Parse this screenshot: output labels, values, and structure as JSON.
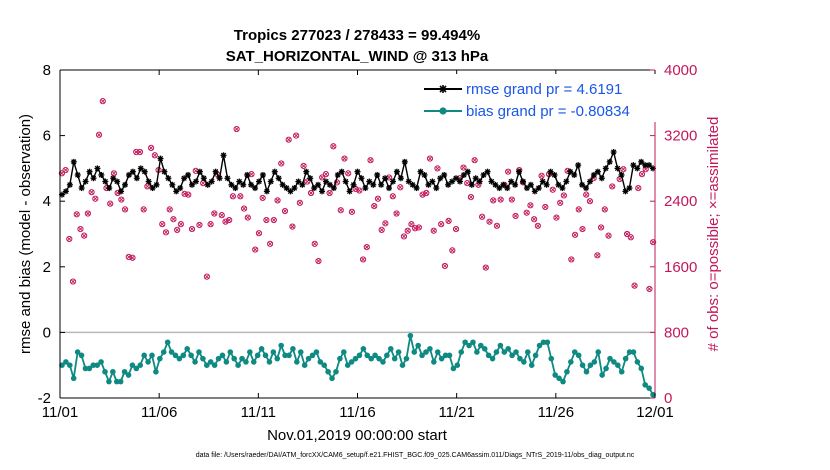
{
  "chart_data": {
    "type": "line",
    "title": "Tropics 277023 / 278433 = 99.494%",
    "subtitle": "SAT_HORIZONTAL_WIND @ 313 hPa",
    "xlabel": "Nov.01,2019 00:00:00 start",
    "ylabel": "rmse and bias (model - observation)",
    "y2label": "# of obs: o=possible; ×=assimilated",
    "xlim": [
      0,
      30
    ],
    "ylim": [
      -2,
      8
    ],
    "y2lim": [
      0,
      4000
    ],
    "x_ticks": [
      0,
      5,
      10,
      15,
      20,
      25,
      30
    ],
    "x_tick_labels": [
      "11/01",
      "11/06",
      "11/11",
      "11/16",
      "11/21",
      "11/26",
      "12/01"
    ],
    "y_ticks": [
      -2,
      0,
      2,
      4,
      6,
      8
    ],
    "y2_ticks": [
      0,
      800,
      1600,
      2400,
      3200,
      4000
    ],
    "footnote": "data file: /Users/raeder/DAI/ATM_forcXX/CAM6_setup/f.e21.FHIST_BGC.f09_025.CAM6assim.011/Diags_NTrS_2019-11/obs_diag_output.nc",
    "series": [
      {
        "name": "rmse grand pr = 4.6191",
        "color": "#000000",
        "marker": "asterisk",
        "values": [
          4.2,
          4.3,
          4.5,
          5.2,
          4.8,
          4.4,
          4.6,
          4.9,
          4.7,
          5.0,
          4.8,
          4.6,
          4.4,
          4.7,
          4.6,
          4.3,
          4.5,
          4.8,
          4.9,
          4.7,
          5.0,
          4.9,
          4.6,
          4.4,
          4.5,
          5.3,
          4.9,
          4.7,
          4.5,
          4.3,
          4.4,
          4.7,
          4.8,
          4.5,
          4.6,
          4.9,
          4.7,
          4.5,
          4.6,
          4.9,
          4.7,
          5.4,
          4.7,
          4.5,
          4.4,
          4.6,
          4.5,
          4.8,
          4.5,
          4.4,
          4.6,
          4.8,
          4.3,
          4.6,
          4.9,
          4.7,
          4.5,
          4.4,
          4.3,
          4.4,
          4.6,
          4.5,
          4.9,
          4.7,
          4.4,
          4.5,
          4.3,
          4.6,
          4.5,
          4.4,
          4.8,
          4.9,
          4.6,
          4.3,
          4.5,
          4.9,
          4.7,
          4.4,
          4.6,
          4.5,
          4.8,
          4.5,
          4.7,
          4.4,
          4.6,
          4.9,
          4.7,
          5.2,
          4.6,
          4.5,
          4.4,
          4.9,
          4.8,
          4.5,
          4.6,
          4.4,
          4.7,
          4.8,
          4.5,
          4.6,
          4.7,
          4.6,
          4.8,
          4.9,
          4.5,
          4.7,
          4.6,
          4.8,
          4.9,
          4.6,
          4.5,
          4.4,
          4.5,
          4.4,
          4.6,
          4.5,
          4.9,
          4.6,
          4.4,
          4.5,
          4.3,
          4.4,
          4.6,
          4.5,
          4.9,
          4.8,
          4.5,
          4.4,
          4.6,
          4.9,
          4.8,
          5.1,
          4.5,
          4.4,
          4.6,
          4.8,
          4.9,
          4.7,
          5.0,
          5.2,
          5.5,
          5.0,
          4.8,
          4.3,
          4.4,
          5.1,
          5.0,
          5.2,
          5.1,
          5.1,
          5.0
        ]
      },
      {
        "name": "bias grand pr = -0.80834",
        "color": "#0f8a82",
        "marker": "circle",
        "values": [
          -1.0,
          -0.9,
          -1.0,
          -1.4,
          -0.6,
          -0.7,
          -1.1,
          -1.1,
          -1.0,
          -1.0,
          -0.9,
          -1.2,
          -1.5,
          -1.2,
          -1.5,
          -1.5,
          -1.2,
          -1.3,
          -1.0,
          -1.1,
          -1.0,
          -0.7,
          -0.9,
          -0.7,
          -1.2,
          -0.8,
          -0.6,
          -0.3,
          -0.6,
          -0.7,
          -0.8,
          -0.7,
          -0.5,
          -0.7,
          -0.9,
          -0.6,
          -0.8,
          -1.0,
          -0.9,
          -1.0,
          -0.8,
          -0.7,
          -0.9,
          -0.6,
          -0.8,
          -1.0,
          -0.8,
          -0.9,
          -0.6,
          -0.9,
          -0.7,
          -0.5,
          -0.7,
          -0.9,
          -0.6,
          -0.8,
          -0.4,
          -0.7,
          -0.7,
          -0.5,
          -0.9,
          -0.6,
          -1.0,
          -0.8,
          -0.7,
          -0.6,
          -0.9,
          -1.0,
          -1.2,
          -1.4,
          -1.2,
          -0.8,
          -0.6,
          -1.0,
          -0.9,
          -0.8,
          -0.7,
          -0.5,
          -0.7,
          -0.8,
          -0.7,
          -0.8,
          -0.9,
          -0.7,
          -0.5,
          -0.8,
          -0.6,
          -1.0,
          -0.8,
          -0.1,
          -0.6,
          -0.4,
          -0.7,
          -0.6,
          -0.5,
          -0.9,
          -0.6,
          -0.8,
          -0.7,
          -0.7,
          -1.1,
          -1.0,
          -0.6,
          -0.3,
          -0.4,
          -0.3,
          -0.6,
          -0.4,
          -0.5,
          -0.7,
          -0.8,
          -0.6,
          -0.4,
          -0.6,
          -0.5,
          -0.7,
          -0.6,
          -0.8,
          -0.9,
          -0.6,
          -1.0,
          -0.7,
          -0.4,
          -0.3,
          -0.3,
          -0.8,
          -1.3,
          -1.4,
          -1.5,
          -1.2,
          -0.9,
          -0.6,
          -0.7,
          -1.0,
          -1.2,
          -1.0,
          -0.9,
          -0.6,
          -1.3,
          -1.1,
          -0.8,
          -0.9,
          -1.0,
          -1.2,
          -0.8,
          -0.6,
          -0.6,
          -0.9,
          -1.1,
          -1.6,
          -1.7,
          -1.9
        ]
      }
    ],
    "obs_series": {
      "name": "# of obs",
      "color": "#c2185b",
      "axis": "right",
      "values": [
        2740,
        2780,
        1940,
        1420,
        2240,
        2060,
        1980,
        2250,
        2510,
        2430,
        3210,
        3620,
        2560,
        2370,
        2740,
        2500,
        2420,
        2300,
        1720,
        1710,
        3000,
        3000,
        2300,
        2580,
        3050,
        2960,
        2780,
        2120,
        2020,
        2300,
        2180,
        2050,
        2120,
        2490,
        2480,
        2060,
        2770,
        2110,
        2620,
        1480,
        2120,
        2250,
        2720,
        2230,
        2150,
        2170,
        2460,
        3280,
        2460,
        2310,
        2200,
        2730,
        1810,
        2010,
        2440,
        2170,
        1880,
        2170,
        2410,
        2860,
        2280,
        3150,
        2090,
        3200,
        2380,
        2830,
        2640,
        2500,
        1880,
        1670,
        2690,
        2730,
        2500,
        3070,
        2630,
        2290,
        2920,
        2740,
        2270,
        2550,
        2530,
        1690,
        1840,
        2900,
        2340,
        2430,
        2050,
        2130,
        2690,
        2460,
        2250,
        2570,
        1970,
        2040,
        2120,
        2070,
        2080,
        2480,
        2500,
        2920,
        2040,
        2800,
        2120,
        1610,
        2160,
        1800,
        2060,
        2680,
        2810,
        2620,
        2450,
        2900,
        2600,
        2210,
        1590,
        2150,
        2410,
        2100,
        2420,
        2600,
        2760,
        2420,
        2220,
        2780,
        2630,
        2260,
        2350,
        2180,
        2100,
        2710,
        2330,
        2730,
        2540,
        2200,
        2380,
        2470,
        2770,
        1690,
        1990,
        2300,
        2060,
        2480,
        2400,
        2680,
        1740,
        2080,
        2300,
        1980,
        2580,
        3480,
        2670,
        2790,
        2000,
        1960,
        1370,
        2560,
        2730,
        2790,
        1330,
        1900
      ]
    },
    "zero_line": 0
  }
}
